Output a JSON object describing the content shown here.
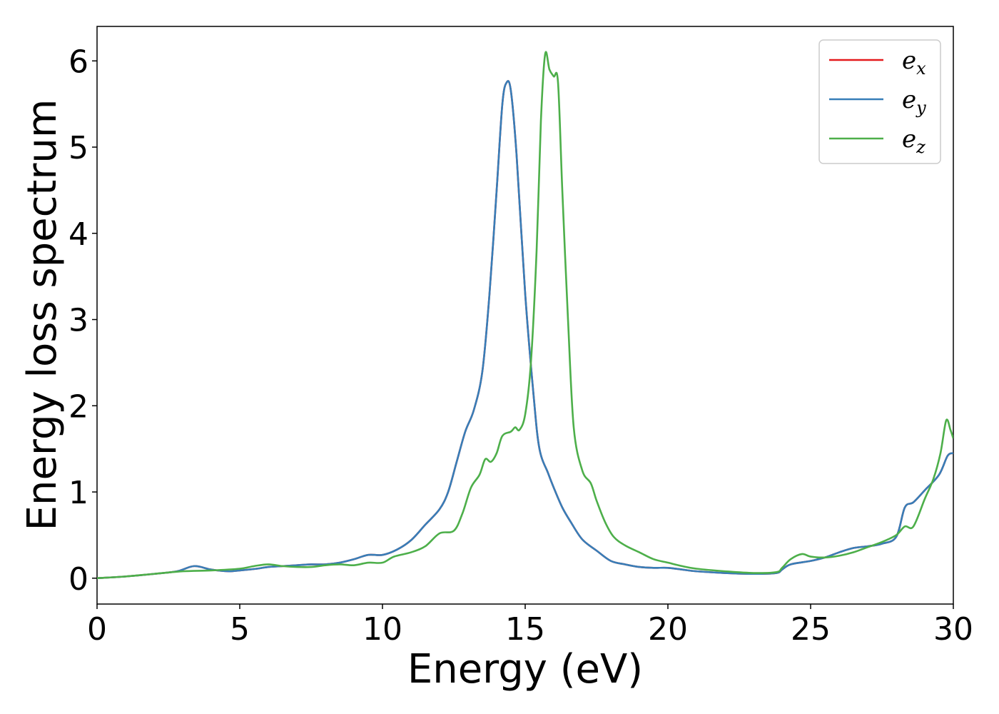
{
  "chart_data": {
    "type": "line",
    "title": "",
    "xlabel": "Energy (eV)",
    "ylabel": "Energy loss spectrum",
    "xlim": [
      0,
      30
    ],
    "ylim": [
      -0.3,
      6.4
    ],
    "xticks": [
      "0",
      "5",
      "10",
      "15",
      "20",
      "25",
      "30"
    ],
    "yticks": [
      "0",
      "1",
      "2",
      "3",
      "4",
      "5",
      "6"
    ],
    "grid": false,
    "legend_position": "top-right",
    "series": [
      {
        "name": "e_x",
        "legend_base": "e",
        "legend_sub": "x",
        "color": "#e41a1c",
        "points": [
          [
            0,
            0.0
          ],
          [
            1,
            0.02
          ],
          [
            2,
            0.05
          ],
          [
            2.8,
            0.08
          ],
          [
            3.4,
            0.14
          ],
          [
            4,
            0.1
          ],
          [
            4.6,
            0.08
          ],
          [
            5,
            0.09
          ],
          [
            5.6,
            0.11
          ],
          [
            6,
            0.13
          ],
          [
            6.5,
            0.14
          ],
          [
            7,
            0.15
          ],
          [
            7.5,
            0.16
          ],
          [
            8,
            0.16
          ],
          [
            8.5,
            0.18
          ],
          [
            9,
            0.22
          ],
          [
            9.5,
            0.27
          ],
          [
            10,
            0.27
          ],
          [
            10.5,
            0.33
          ],
          [
            11,
            0.44
          ],
          [
            11.5,
            0.62
          ],
          [
            12,
            0.8
          ],
          [
            12.3,
            1.0
          ],
          [
            12.6,
            1.35
          ],
          [
            12.9,
            1.7
          ],
          [
            13.2,
            1.95
          ],
          [
            13.5,
            2.4
          ],
          [
            13.75,
            3.3
          ],
          [
            14,
            4.5
          ],
          [
            14.2,
            5.5
          ],
          [
            14.35,
            5.75
          ],
          [
            14.5,
            5.65
          ],
          [
            14.7,
            4.9
          ],
          [
            15,
            3.3
          ],
          [
            15.3,
            2.1
          ],
          [
            15.5,
            1.5
          ],
          [
            15.8,
            1.22
          ],
          [
            16,
            1.05
          ],
          [
            16.3,
            0.82
          ],
          [
            16.6,
            0.65
          ],
          [
            17,
            0.45
          ],
          [
            17.5,
            0.32
          ],
          [
            18,
            0.2
          ],
          [
            18.5,
            0.16
          ],
          [
            19,
            0.13
          ],
          [
            19.5,
            0.12
          ],
          [
            20,
            0.12
          ],
          [
            20.5,
            0.1
          ],
          [
            21,
            0.08
          ],
          [
            22,
            0.06
          ],
          [
            23,
            0.05
          ],
          [
            23.8,
            0.06
          ],
          [
            24,
            0.1
          ],
          [
            24.3,
            0.16
          ],
          [
            25,
            0.2
          ],
          [
            25.5,
            0.24
          ],
          [
            26,
            0.3
          ],
          [
            26.5,
            0.35
          ],
          [
            27,
            0.37
          ],
          [
            27.5,
            0.4
          ],
          [
            28,
            0.48
          ],
          [
            28.3,
            0.82
          ],
          [
            28.6,
            0.88
          ],
          [
            29,
            1.02
          ],
          [
            29.5,
            1.2
          ],
          [
            29.8,
            1.42
          ],
          [
            30,
            1.45
          ]
        ]
      },
      {
        "name": "e_y",
        "legend_base": "e",
        "legend_sub": "y",
        "color": "#377eb8",
        "points": [
          [
            0,
            0.0
          ],
          [
            1,
            0.02
          ],
          [
            2,
            0.05
          ],
          [
            2.8,
            0.08
          ],
          [
            3.4,
            0.14
          ],
          [
            4,
            0.1
          ],
          [
            4.6,
            0.08
          ],
          [
            5,
            0.09
          ],
          [
            5.6,
            0.11
          ],
          [
            6,
            0.13
          ],
          [
            6.5,
            0.14
          ],
          [
            7,
            0.15
          ],
          [
            7.5,
            0.16
          ],
          [
            8,
            0.16
          ],
          [
            8.5,
            0.18
          ],
          [
            9,
            0.22
          ],
          [
            9.5,
            0.27
          ],
          [
            10,
            0.27
          ],
          [
            10.5,
            0.33
          ],
          [
            11,
            0.44
          ],
          [
            11.5,
            0.62
          ],
          [
            12,
            0.8
          ],
          [
            12.3,
            1.0
          ],
          [
            12.6,
            1.35
          ],
          [
            12.9,
            1.7
          ],
          [
            13.2,
            1.95
          ],
          [
            13.5,
            2.4
          ],
          [
            13.75,
            3.3
          ],
          [
            14,
            4.5
          ],
          [
            14.2,
            5.5
          ],
          [
            14.35,
            5.75
          ],
          [
            14.5,
            5.65
          ],
          [
            14.7,
            4.9
          ],
          [
            15,
            3.3
          ],
          [
            15.3,
            2.1
          ],
          [
            15.5,
            1.5
          ],
          [
            15.8,
            1.22
          ],
          [
            16,
            1.05
          ],
          [
            16.3,
            0.82
          ],
          [
            16.6,
            0.65
          ],
          [
            17,
            0.45
          ],
          [
            17.5,
            0.32
          ],
          [
            18,
            0.2
          ],
          [
            18.5,
            0.16
          ],
          [
            19,
            0.13
          ],
          [
            19.5,
            0.12
          ],
          [
            20,
            0.12
          ],
          [
            20.5,
            0.1
          ],
          [
            21,
            0.08
          ],
          [
            22,
            0.06
          ],
          [
            23,
            0.05
          ],
          [
            23.8,
            0.06
          ],
          [
            24,
            0.1
          ],
          [
            24.3,
            0.16
          ],
          [
            25,
            0.2
          ],
          [
            25.5,
            0.24
          ],
          [
            26,
            0.3
          ],
          [
            26.5,
            0.35
          ],
          [
            27,
            0.37
          ],
          [
            27.5,
            0.4
          ],
          [
            28,
            0.48
          ],
          [
            28.3,
            0.82
          ],
          [
            28.6,
            0.88
          ],
          [
            29,
            1.02
          ],
          [
            29.5,
            1.2
          ],
          [
            29.8,
            1.42
          ],
          [
            30,
            1.45
          ]
        ]
      },
      {
        "name": "e_z",
        "legend_base": "e",
        "legend_sub": "z",
        "color": "#4daf4a",
        "points": [
          [
            0,
            0.0
          ],
          [
            1,
            0.02
          ],
          [
            2,
            0.05
          ],
          [
            3,
            0.08
          ],
          [
            4,
            0.09
          ],
          [
            5,
            0.11
          ],
          [
            5.5,
            0.14
          ],
          [
            6,
            0.16
          ],
          [
            6.5,
            0.14
          ],
          [
            7,
            0.13
          ],
          [
            7.5,
            0.13
          ],
          [
            8,
            0.15
          ],
          [
            8.5,
            0.16
          ],
          [
            9,
            0.15
          ],
          [
            9.5,
            0.18
          ],
          [
            10,
            0.18
          ],
          [
            10.4,
            0.25
          ],
          [
            11,
            0.3
          ],
          [
            11.5,
            0.37
          ],
          [
            12,
            0.52
          ],
          [
            12.5,
            0.55
          ],
          [
            12.8,
            0.75
          ],
          [
            13.1,
            1.05
          ],
          [
            13.4,
            1.2
          ],
          [
            13.6,
            1.38
          ],
          [
            13.8,
            1.35
          ],
          [
            14,
            1.45
          ],
          [
            14.2,
            1.65
          ],
          [
            14.5,
            1.7
          ],
          [
            14.65,
            1.75
          ],
          [
            14.8,
            1.72
          ],
          [
            15,
            1.9
          ],
          [
            15.2,
            2.5
          ],
          [
            15.4,
            3.8
          ],
          [
            15.55,
            5.3
          ],
          [
            15.7,
            6.08
          ],
          [
            15.85,
            5.9
          ],
          [
            16,
            5.82
          ],
          [
            16.15,
            5.75
          ],
          [
            16.3,
            4.5
          ],
          [
            16.5,
            3.0
          ],
          [
            16.7,
            1.75
          ],
          [
            17,
            1.25
          ],
          [
            17.3,
            1.1
          ],
          [
            17.5,
            0.9
          ],
          [
            17.8,
            0.65
          ],
          [
            18.1,
            0.48
          ],
          [
            18.5,
            0.38
          ],
          [
            19,
            0.3
          ],
          [
            19.5,
            0.22
          ],
          [
            20,
            0.18
          ],
          [
            20.5,
            0.14
          ],
          [
            21,
            0.11
          ],
          [
            22,
            0.08
          ],
          [
            23,
            0.06
          ],
          [
            23.8,
            0.07
          ],
          [
            24,
            0.12
          ],
          [
            24.3,
            0.22
          ],
          [
            24.7,
            0.28
          ],
          [
            25,
            0.25
          ],
          [
            25.5,
            0.24
          ],
          [
            26,
            0.26
          ],
          [
            26.5,
            0.3
          ],
          [
            27,
            0.36
          ],
          [
            27.5,
            0.42
          ],
          [
            28,
            0.5
          ],
          [
            28.3,
            0.6
          ],
          [
            28.6,
            0.6
          ],
          [
            29,
            0.92
          ],
          [
            29.3,
            1.15
          ],
          [
            29.55,
            1.45
          ],
          [
            29.75,
            1.83
          ],
          [
            29.9,
            1.72
          ],
          [
            30,
            1.62
          ]
        ]
      }
    ]
  }
}
